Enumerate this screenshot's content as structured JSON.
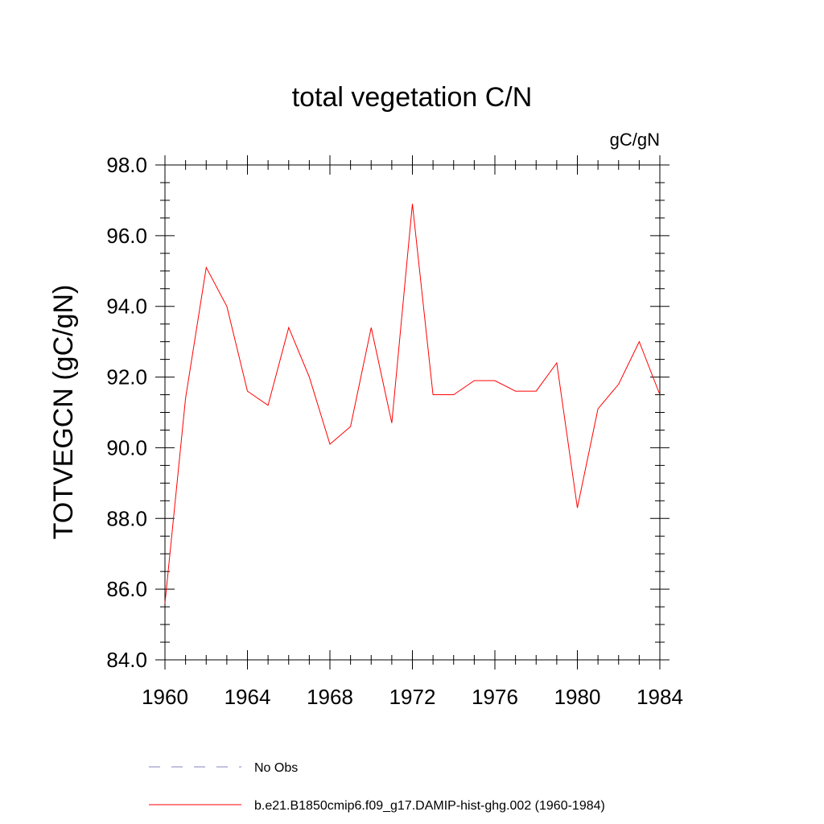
{
  "chart_data": {
    "type": "line",
    "title": "total vegetation C/N",
    "units_label": "gC/gN",
    "xlabel": "",
    "ylabel": "TOTVEGCN  (gC/gN)",
    "xlim": [
      1960,
      1984
    ],
    "ylim": [
      84.0,
      98.0
    ],
    "x_ticks": [
      1960,
      1964,
      1968,
      1972,
      1976,
      1980,
      1984
    ],
    "x_tick_labels": [
      "1960",
      "1964",
      "1968",
      "1972",
      "1976",
      "1980",
      "1984"
    ],
    "y_ticks": [
      84.0,
      86.0,
      88.0,
      90.0,
      92.0,
      94.0,
      96.0,
      98.0
    ],
    "y_tick_labels": [
      "84.0",
      "86.0",
      "88.0",
      "90.0",
      "92.0",
      "94.0",
      "96.0",
      "98.0"
    ],
    "grid": false,
    "legend_placement": "bottom",
    "series": [
      {
        "name": "b.e21.B1850cmip6.f09_g17.DAMIP-hist-ghg.002 (1960-1984)",
        "color": "#ff0000",
        "style": "solid",
        "x": [
          1960,
          1961,
          1962,
          1963,
          1964,
          1965,
          1966,
          1967,
          1968,
          1969,
          1970,
          1971,
          1972,
          1973,
          1974,
          1975,
          1976,
          1977,
          1978,
          1979,
          1980,
          1981,
          1982,
          1983,
          1984
        ],
        "y": [
          85.6,
          91.4,
          95.1,
          94.0,
          91.6,
          91.2,
          93.4,
          92.0,
          90.1,
          90.6,
          93.4,
          90.7,
          96.9,
          91.5,
          91.5,
          91.9,
          91.9,
          91.6,
          91.6,
          92.4,
          88.3,
          91.1,
          91.8,
          93.0,
          91.5
        ]
      }
    ],
    "legend": [
      {
        "label": "No Obs",
        "color": "#8080c0",
        "style": "dashed"
      },
      {
        "label": "b.e21.B1850cmip6.f09_g17.DAMIP-hist-ghg.002 (1960-1984)",
        "color": "#ff0000",
        "style": "solid"
      }
    ]
  }
}
